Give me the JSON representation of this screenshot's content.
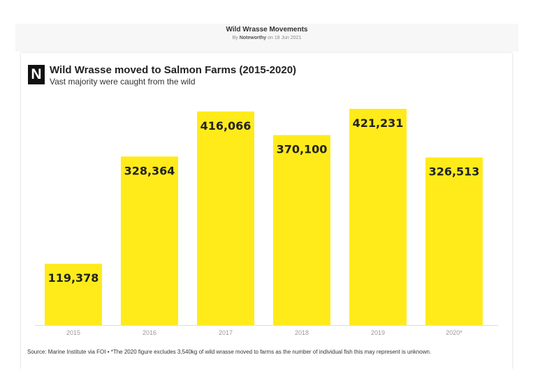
{
  "header": {
    "title": "Wild Wrasse Movements",
    "by_prefix": "By",
    "author": "Noteworthy",
    "date_text": "on 18 Jun 2021"
  },
  "logo": {
    "letter": "N"
  },
  "colors": {
    "bar": "#ffeb1a",
    "axis": "#dddddd"
  },
  "footnote": "Source: Marine Institute via FOI • *The 2020 figure excludes 3,540kg of wild wrasse moved to farms as the number of individual fish this may represent is unknown.",
  "chart_data": {
    "type": "bar",
    "title": "Wild Wrasse moved to Salmon Farms (2015-2020)",
    "subtitle": "Vast majority were caught from the wild",
    "categories": [
      "2015",
      "2016",
      "2017",
      "2018",
      "2019",
      "2020*"
    ],
    "values": [
      119378,
      328364,
      416066,
      370100,
      421231,
      326513
    ],
    "value_labels": [
      "119,378",
      "328,364",
      "416,066",
      "370,100",
      "421,231",
      "326,513"
    ],
    "xlabel": "",
    "ylabel": "",
    "ylim": [
      0,
      421231
    ],
    "grid": false,
    "legend": "none"
  }
}
